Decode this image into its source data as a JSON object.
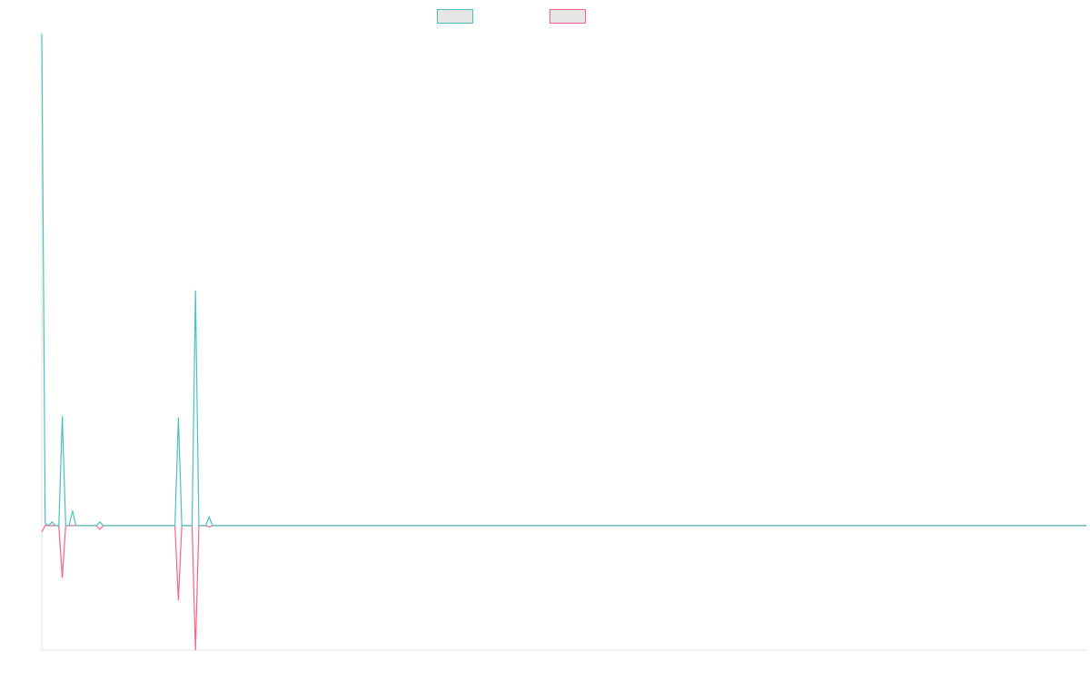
{
  "colors": {
    "series_1": "#4bc0c0",
    "series_2": "#ff6384",
    "axis": "#e0e0e0",
    "legend_fill": "#e6e6e6"
  },
  "chart_data": {
    "type": "line",
    "title": "",
    "xlabel": "",
    "ylabel": "",
    "grid": false,
    "legend_placement": "top-center",
    "x": [
      0,
      1,
      2,
      3,
      4,
      5,
      6,
      7,
      8,
      9,
      10,
      11,
      12,
      13,
      14,
      15,
      16,
      17,
      18,
      19,
      20,
      21,
      22,
      23,
      24,
      25,
      26,
      27,
      28,
      29,
      30,
      31,
      32,
      33,
      34,
      35,
      36,
      37,
      38,
      39,
      40,
      41,
      42,
      43,
      44,
      45,
      46,
      47,
      48,
      49,
      50,
      51,
      52,
      53,
      54,
      55,
      56,
      57,
      58,
      59,
      60,
      61,
      62,
      63,
      64,
      65,
      66,
      67,
      68,
      69,
      70,
      71,
      72,
      73,
      74,
      75,
      76,
      77,
      78,
      79,
      80,
      81,
      82,
      83,
      84,
      85,
      86,
      87,
      88,
      89,
      90,
      91,
      92,
      93,
      94,
      95,
      96,
      97,
      98,
      99,
      100,
      101,
      102,
      103,
      104,
      105,
      106,
      107,
      108,
      109,
      110,
      111,
      112,
      113,
      114,
      115,
      116,
      117,
      118,
      119,
      120,
      121,
      122,
      123,
      124,
      125,
      126,
      127,
      128,
      129,
      130,
      131,
      132,
      133,
      134,
      135,
      136,
      137,
      138,
      139,
      140,
      141,
      142,
      143,
      144,
      145,
      146,
      147,
      148,
      149,
      150,
      151,
      152,
      153,
      154,
      155,
      156,
      157,
      158,
      159,
      160,
      161,
      162,
      163,
      164,
      165,
      166,
      167,
      168,
      169,
      170,
      171,
      172,
      173,
      174,
      175,
      176,
      177,
      178,
      179,
      180,
      181,
      182,
      183,
      184,
      185,
      186,
      187,
      188,
      189,
      190,
      191,
      192,
      193,
      194,
      195,
      196,
      197,
      198,
      199,
      200,
      201,
      202,
      203,
      204,
      205,
      206,
      207,
      208,
      209,
      210,
      211,
      212,
      213,
      214,
      215,
      216,
      217,
      218,
      219,
      220,
      221,
      222,
      223,
      224,
      225,
      226,
      227,
      228,
      229,
      230,
      231,
      232,
      233,
      234,
      235,
      236,
      237,
      238,
      239,
      240,
      241,
      242,
      243,
      244,
      245,
      246,
      247,
      248,
      249,
      250,
      251,
      252,
      253,
      254,
      255,
      256,
      257,
      258,
      259,
      260,
      261,
      262,
      263,
      264,
      265,
      266,
      267,
      268,
      269,
      270,
      271,
      272,
      273,
      274,
      275,
      276,
      277,
      278,
      279,
      280,
      281,
      282,
      283,
      284,
      285,
      286,
      287,
      288,
      289,
      290,
      291,
      292,
      293,
      294,
      295,
      296,
      297,
      298,
      299,
      300
    ],
    "ylim": [
      -1.0,
      3.96
    ],
    "xlim": [
      0,
      300
    ],
    "series": [
      {
        "color": "#4bc0c0",
        "points": [
          [
            0,
            3.95
          ],
          [
            1,
            0.02
          ],
          [
            2,
            0.0
          ],
          [
            3,
            0.03
          ],
          [
            4,
            0.0
          ],
          [
            5,
            0.0
          ],
          [
            6,
            0.88
          ],
          [
            7,
            0.0
          ],
          [
            8,
            0.0
          ],
          [
            9,
            0.12
          ],
          [
            10,
            0.0
          ],
          [
            11,
            0.0
          ],
          [
            12,
            0.0
          ],
          [
            13,
            0.0
          ],
          [
            14,
            0.0
          ],
          [
            15,
            0.0
          ],
          [
            16,
            0.0
          ],
          [
            17,
            0.03
          ],
          [
            18,
            0.0
          ],
          [
            19,
            0.0
          ],
          [
            20,
            0.0
          ],
          [
            21,
            0.0
          ],
          [
            22,
            0.0
          ],
          [
            23,
            0.0
          ],
          [
            24,
            0.0
          ],
          [
            25,
            0.0
          ],
          [
            26,
            0.0
          ],
          [
            27,
            0.0
          ],
          [
            28,
            0.0
          ],
          [
            29,
            0.0
          ],
          [
            30,
            0.0
          ],
          [
            31,
            0.0
          ],
          [
            32,
            0.0
          ],
          [
            33,
            0.0
          ],
          [
            34,
            0.0
          ],
          [
            35,
            0.0
          ],
          [
            36,
            0.0
          ],
          [
            37,
            0.0
          ],
          [
            38,
            0.0
          ],
          [
            39,
            0.0
          ],
          [
            40,
            0.87
          ],
          [
            41,
            0.0
          ],
          [
            42,
            0.0
          ],
          [
            43,
            0.0
          ],
          [
            44,
            0.0
          ],
          [
            45,
            1.89
          ],
          [
            46,
            0.0
          ],
          [
            47,
            0.0
          ],
          [
            48,
            0.0
          ],
          [
            49,
            0.07
          ],
          [
            50,
            0.0
          ],
          [
            300,
            0.0
          ]
        ]
      },
      {
        "color": "#ff6384",
        "points": [
          [
            0,
            -0.05
          ],
          [
            1,
            0.0
          ],
          [
            2,
            0.0
          ],
          [
            3,
            0.0
          ],
          [
            4,
            0.0
          ],
          [
            5,
            0.0
          ],
          [
            6,
            -0.42
          ],
          [
            7,
            0.0
          ],
          [
            8,
            0.0
          ],
          [
            9,
            0.0
          ],
          [
            10,
            0.0
          ],
          [
            11,
            0.0
          ],
          [
            12,
            0.0
          ],
          [
            13,
            0.0
          ],
          [
            14,
            0.0
          ],
          [
            15,
            0.0
          ],
          [
            16,
            0.0
          ],
          [
            17,
            -0.03
          ],
          [
            18,
            0.0
          ],
          [
            19,
            0.0
          ],
          [
            20,
            0.0
          ],
          [
            21,
            0.0
          ],
          [
            22,
            0.0
          ],
          [
            23,
            0.0
          ],
          [
            24,
            0.0
          ],
          [
            25,
            0.0
          ],
          [
            26,
            0.0
          ],
          [
            27,
            0.0
          ],
          [
            28,
            0.0
          ],
          [
            29,
            0.0
          ],
          [
            30,
            0.0
          ],
          [
            31,
            0.0
          ],
          [
            32,
            0.0
          ],
          [
            33,
            0.0
          ],
          [
            34,
            0.0
          ],
          [
            35,
            0.0
          ],
          [
            36,
            0.0
          ],
          [
            37,
            0.0
          ],
          [
            38,
            0.0
          ],
          [
            39,
            0.0
          ],
          [
            40,
            -0.6
          ],
          [
            41,
            0.0
          ],
          [
            42,
            0.0
          ],
          [
            43,
            0.0
          ],
          [
            44,
            0.0
          ],
          [
            45,
            -1.0
          ],
          [
            46,
            0.0
          ],
          [
            47,
            0.0
          ],
          [
            48,
            0.0
          ],
          [
            49,
            -0.01
          ],
          [
            50,
            0.0
          ],
          [
            300,
            0.0
          ]
        ]
      }
    ]
  }
}
